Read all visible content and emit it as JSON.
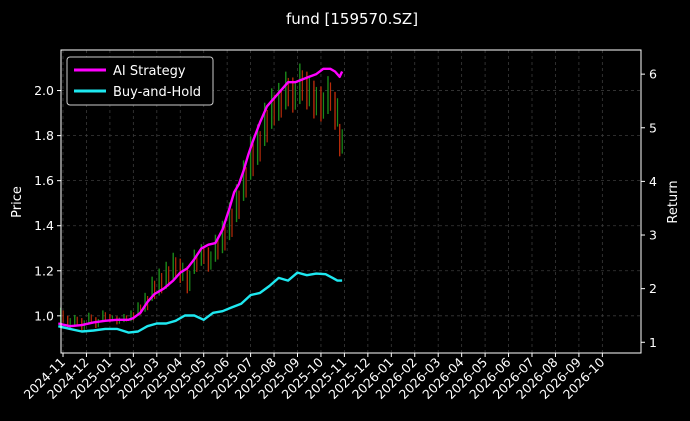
{
  "chart_data": {
    "type": "line",
    "title": "fund [159570.SZ]",
    "xlabel": "",
    "ylabel": "Price",
    "y2label": "Return",
    "ylim": [
      0.835,
      2.18
    ],
    "y2lim": [
      0.8,
      6.45
    ],
    "x_tick_labels": [
      "2024-11",
      "2024-12",
      "2025-01",
      "2025-02",
      "2025-03",
      "2025-04",
      "2025-05",
      "2025-06",
      "2025-07",
      "2025-08",
      "2025-09",
      "2025-10",
      "2025-11",
      "2025-12",
      "2026-01",
      "2026-02",
      "2026-03",
      "2026-04",
      "2026-05",
      "2026-06",
      "2026-07",
      "2026-08",
      "2026-09",
      "2026-10"
    ],
    "y_ticks": [
      1.0,
      1.2,
      1.4,
      1.6,
      1.8,
      2.0
    ],
    "y2_ticks": [
      1,
      2,
      3,
      4,
      5,
      6
    ],
    "grid": true,
    "legend_position": "top-left",
    "colors": {
      "background": "#000000",
      "grid": "#3a3a3a",
      "ai_strategy": "#ff00ff",
      "buy_and_hold": "#1ee8f0",
      "candle_up": "#1a8a1a",
      "candle_down": "#b52a0a",
      "text": "#ffffff"
    },
    "candles": {
      "note_x_unit": "month index from 2024-11 (0 = 2024-11)",
      "x": [
        -0.1,
        0.2,
        0.5,
        0.8,
        1.1,
        1.4,
        1.7,
        2.0,
        2.3,
        2.6,
        2.9,
        3.2,
        3.5,
        3.8,
        4.1,
        4.4,
        4.7,
        5.0,
        5.3,
        5.6,
        5.9,
        6.2,
        6.5,
        6.8,
        7.1,
        7.4,
        7.7,
        8.0,
        8.3,
        8.6,
        8.9,
        9.2,
        9.5,
        9.8,
        10.1,
        10.4,
        10.7,
        11.0,
        11.3,
        11.6,
        11.8
      ],
      "close": [
        1.0,
        0.97,
        0.98,
        0.96,
        0.99,
        0.97,
        1.0,
        0.99,
        0.98,
        0.99,
        1.0,
        1.03,
        1.06,
        1.12,
        1.15,
        1.18,
        1.22,
        1.2,
        1.16,
        1.24,
        1.27,
        1.25,
        1.3,
        1.35,
        1.42,
        1.5,
        1.6,
        1.7,
        1.76,
        1.85,
        1.92,
        1.95,
        2.0,
        1.98,
        2.03,
        2.0,
        1.96,
        1.94,
        1.98,
        1.91,
        1.78
      ],
      "range": [
        0.06,
        0.05,
        0.04,
        0.05,
        0.04,
        0.04,
        0.04,
        0.03,
        0.03,
        0.03,
        0.04,
        0.05,
        0.07,
        0.09,
        0.1,
        0.1,
        0.1,
        0.09,
        0.1,
        0.09,
        0.08,
        0.09,
        0.1,
        0.12,
        0.14,
        0.14,
        0.15,
        0.16,
        0.15,
        0.16,
        0.15,
        0.14,
        0.14,
        0.13,
        0.15,
        0.14,
        0.14,
        0.13,
        0.14,
        0.14,
        0.12
      ]
    },
    "series": [
      {
        "name": "AI Strategy",
        "axis": "right",
        "x": [
          -0.2,
          0.3,
          0.8,
          1.3,
          1.8,
          2.3,
          2.8,
          3.0,
          3.3,
          3.6,
          3.9,
          4.3,
          4.7,
          5.0,
          5.3,
          5.6,
          5.9,
          6.2,
          6.5,
          6.8,
          7.1,
          7.3,
          7.5,
          7.7,
          7.9,
          8.1,
          8.4,
          8.7,
          9.0,
          9.3,
          9.6,
          9.9,
          10.2,
          10.5,
          10.8,
          11.1,
          11.4,
          11.6,
          11.8,
          11.9
        ],
        "values": [
          1.35,
          1.3,
          1.32,
          1.37,
          1.4,
          1.42,
          1.42,
          1.45,
          1.55,
          1.75,
          1.9,
          2.0,
          2.15,
          2.3,
          2.38,
          2.55,
          2.75,
          2.82,
          2.85,
          3.1,
          3.5,
          3.8,
          3.95,
          4.2,
          4.5,
          4.75,
          5.1,
          5.4,
          5.55,
          5.7,
          5.85,
          5.85,
          5.9,
          5.95,
          6.0,
          6.1,
          6.1,
          6.05,
          5.95,
          6.05
        ]
      },
      {
        "name": "Buy-and-Hold",
        "axis": "right",
        "x": [
          -0.2,
          0.3,
          0.8,
          1.3,
          1.8,
          2.3,
          2.8,
          3.2,
          3.6,
          4.0,
          4.4,
          4.8,
          5.2,
          5.6,
          6.0,
          6.4,
          6.8,
          7.2,
          7.6,
          8.0,
          8.4,
          8.8,
          9.2,
          9.6,
          10.0,
          10.4,
          10.8,
          11.2,
          11.5,
          11.7,
          11.9
        ],
        "values": [
          1.3,
          1.25,
          1.2,
          1.22,
          1.25,
          1.25,
          1.18,
          1.2,
          1.3,
          1.35,
          1.35,
          1.4,
          1.5,
          1.5,
          1.42,
          1.55,
          1.58,
          1.65,
          1.72,
          1.88,
          1.92,
          2.05,
          2.2,
          2.15,
          2.3,
          2.25,
          2.28,
          2.27,
          2.2,
          2.15,
          2.15
        ]
      }
    ]
  }
}
